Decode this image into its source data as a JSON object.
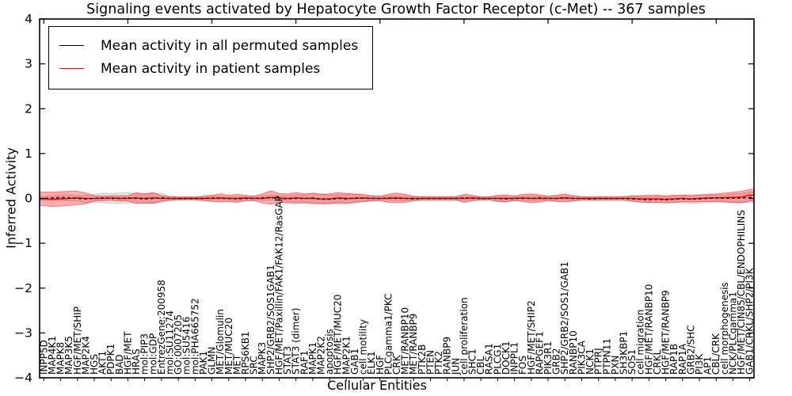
{
  "title": "Signaling events activated by Hepatocyte Growth Factor Receptor (c-Met) -- 367 samples",
  "legend": {
    "entries": [
      {
        "label": "Mean activity in all permuted samples",
        "color": "#000000"
      },
      {
        "label": "Mean activity in patient samples",
        "color": "#ff0000"
      }
    ]
  },
  "chart_data": {
    "type": "line",
    "title": "Signaling events activated by Hepatocyte Growth Factor Receptor (c-Met) -- 367 samples",
    "xlabel": "Cellular Entities",
    "ylabel": "Inferred Activity",
    "ylim": [
      -4,
      4
    ],
    "yticks": [
      4,
      3,
      2,
      1,
      0,
      -1,
      -2,
      -3,
      -4
    ],
    "grid": false,
    "legend_position": "upper left",
    "categories": [
      "INPP5D",
      "MAP4K1",
      "MAPK8",
      "MAP3K5",
      "HGF/MET/SHIP",
      "MAP2K4",
      "HGS",
      "AKT1",
      "PDPK1",
      "BAD",
      "HGF/MET",
      "HRAS",
      "mol:PIP3",
      "mol:GDP",
      "EntrezGene:200958",
      "mol:SU11274",
      "GO:0007205",
      "mol:SU5416",
      "mol:PHA665752",
      "PAK1",
      "GLMN",
      "MET/Glomulin",
      "MET/MUC20",
      "MET",
      "RPS6KB1",
      "SRC",
      "MAPK3",
      "SHP2/GRB2/SOS1GAB1",
      "HGF/MET/Paxillin/FAK1/FAK12/RasGAP",
      "STAT3",
      "STAT3 (dimer)",
      "RAF1",
      "MAPK1",
      "MAP2K2",
      "apoptosis",
      "HGF/MET/MUC20",
      "MAP2K1",
      "GAB1",
      "cell motility",
      "ELK1",
      "HGF",
      "PLCgamma1/PKC",
      "CRK",
      "MET/RANBP10",
      "MET/RANBP9",
      "PTK2B",
      "PTEN",
      "PTK2",
      "RANBP9",
      "JUN",
      "cell proliferation",
      "SHC1",
      "CBL",
      "RASA1",
      "PLCG1",
      "DOCK1",
      "INPPL1",
      "FOS",
      "HGF/MET/SHIP2",
      "RAPGEF1",
      "PIK3R1",
      "GRB2",
      "SHP2/GRB2/SOS1/GAB1",
      "RANBP10",
      "PIK3CA",
      "NCK1",
      "PTPRJ",
      "PTPN11",
      "PXN",
      "SH3KBP1",
      "SOS1",
      "cell migration",
      "HGF/MET/RANBP10",
      "CRKL",
      "HGF/MET/RANBP9",
      "RAP1B",
      "RAP1A",
      "GRB2/SHC",
      "PI3K",
      "AP1",
      "CBL/CRK",
      "cell morphogenesis",
      "NCK/PLCgamma1",
      "HGF/MET/CIN85/CBL/ENDOPHILINS",
      "GAB1/CRKL/SHP2/PI3K"
    ],
    "series": [
      {
        "name": "Mean activity in all permuted samples",
        "color": "#000000",
        "band_color_fill": "#888888",
        "band_fill_opacity": 0.22,
        "values": [
          0,
          0.01,
          0.02,
          0.01,
          0,
          -0.01,
          0,
          0.01,
          0,
          0,
          0.01,
          0,
          -0.01,
          0,
          0.01,
          0,
          0,
          0,
          0,
          0,
          0.01,
          0,
          0,
          -0.01,
          0,
          0,
          0.01,
          0.02,
          0,
          -0.01,
          0,
          0,
          0.01,
          -0.02,
          -0.02,
          0,
          -0.01,
          0.01,
          0,
          0,
          0,
          0.01,
          0,
          0,
          -0.01,
          0,
          0,
          0,
          0,
          0,
          0.01,
          0,
          0,
          0,
          0,
          -0.01,
          0,
          0,
          0,
          0.01,
          0,
          0,
          0.01,
          0,
          0,
          -0.01,
          0,
          0,
          0,
          0,
          -0.01,
          -0.02,
          -0.03,
          -0.02,
          -0.03,
          -0.02,
          -0.01,
          -0.02,
          -0.01,
          0,
          0.01,
          0,
          0.01,
          0.01,
          0.02
        ],
        "band_halfwidth": [
          0.05,
          0.05,
          0.06,
          0.06,
          0.06,
          0.08,
          0.09,
          0.11,
          0.11,
          0.12,
          0.12,
          0.1,
          0.11,
          0.11,
          0.1,
          0.05,
          0.03,
          0.03,
          0.03,
          0.07,
          0.05,
          0.04,
          0.04,
          0.05,
          0.04,
          0.04,
          0.05,
          0.06,
          0.06,
          0.07,
          0.08,
          0.08,
          0.12,
          0.12,
          0.1,
          0.08,
          0.1,
          0.08,
          0.06,
          0.05,
          0.04,
          0.05,
          0.06,
          0.05,
          0.04,
          0.05,
          0.05,
          0.05,
          0.05,
          0.05,
          0.05,
          0.04,
          0.04,
          0.04,
          0.05,
          0.05,
          0.04,
          0.05,
          0.06,
          0.05,
          0.04,
          0.05,
          0.05,
          0.05,
          0.05,
          0.05,
          0.05,
          0.05,
          0.05,
          0.05,
          0.06,
          0.07,
          0.07,
          0.07,
          0.07,
          0.07,
          0.09,
          0.1,
          0.1,
          0.08,
          0.07,
          0.08,
          0.09,
          0.1,
          0.12
        ]
      },
      {
        "name": "Mean activity in patient samples",
        "color": "#ff0000",
        "band_color_fill": "#ff0000",
        "band_fill_opacity": 0.32,
        "values": [
          -0.01,
          -0.02,
          -0.01,
          0,
          0.01,
          0,
          0,
          0,
          0.01,
          0,
          0,
          0.01,
          0,
          0.01,
          0,
          0,
          0,
          0,
          0,
          0,
          0,
          0.01,
          0,
          0,
          0.01,
          0,
          0,
          0.02,
          0.01,
          0,
          0.01,
          0,
          0,
          -0.01,
          -0.01,
          0.01,
          0,
          0,
          0.01,
          0,
          0,
          0,
          0.01,
          0,
          0,
          0,
          0,
          0,
          0,
          0,
          0,
          0.01,
          0,
          0,
          0,
          0,
          0,
          0.01,
          0,
          0,
          0,
          0,
          0.01,
          0,
          0,
          0,
          0,
          0,
          0,
          0,
          0,
          -0.01,
          -0.01,
          -0.01,
          -0.02,
          -0.01,
          0,
          -0.01,
          0,
          0.01,
          0.01,
          0.02,
          0.02,
          0.03,
          0.07
        ],
        "band_halfwidth": [
          0.15,
          0.16,
          0.16,
          0.16,
          0.15,
          0.12,
          0.06,
          0.05,
          0.05,
          0.06,
          0.06,
          0.12,
          0.1,
          0.12,
          0.06,
          0.04,
          0.03,
          0.03,
          0.03,
          0.04,
          0.07,
          0.09,
          0.07,
          0.09,
          0.06,
          0.05,
          0.1,
          0.15,
          0.1,
          0.1,
          0.12,
          0.1,
          0.11,
          0.1,
          0.11,
          0.12,
          0.11,
          0.1,
          0.08,
          0.06,
          0.05,
          0.09,
          0.11,
          0.09,
          0.05,
          0.03,
          0.03,
          0.03,
          0.03,
          0.03,
          0.09,
          0.06,
          0.03,
          0.03,
          0.07,
          0.08,
          0.05,
          0.08,
          0.1,
          0.08,
          0.05,
          0.07,
          0.09,
          0.06,
          0.03,
          0.03,
          0.03,
          0.03,
          0.03,
          0.03,
          0.06,
          0.07,
          0.08,
          0.08,
          0.08,
          0.08,
          0.07,
          0.07,
          0.07,
          0.08,
          0.09,
          0.1,
          0.12,
          0.13,
          0.13
        ]
      }
    ]
  }
}
